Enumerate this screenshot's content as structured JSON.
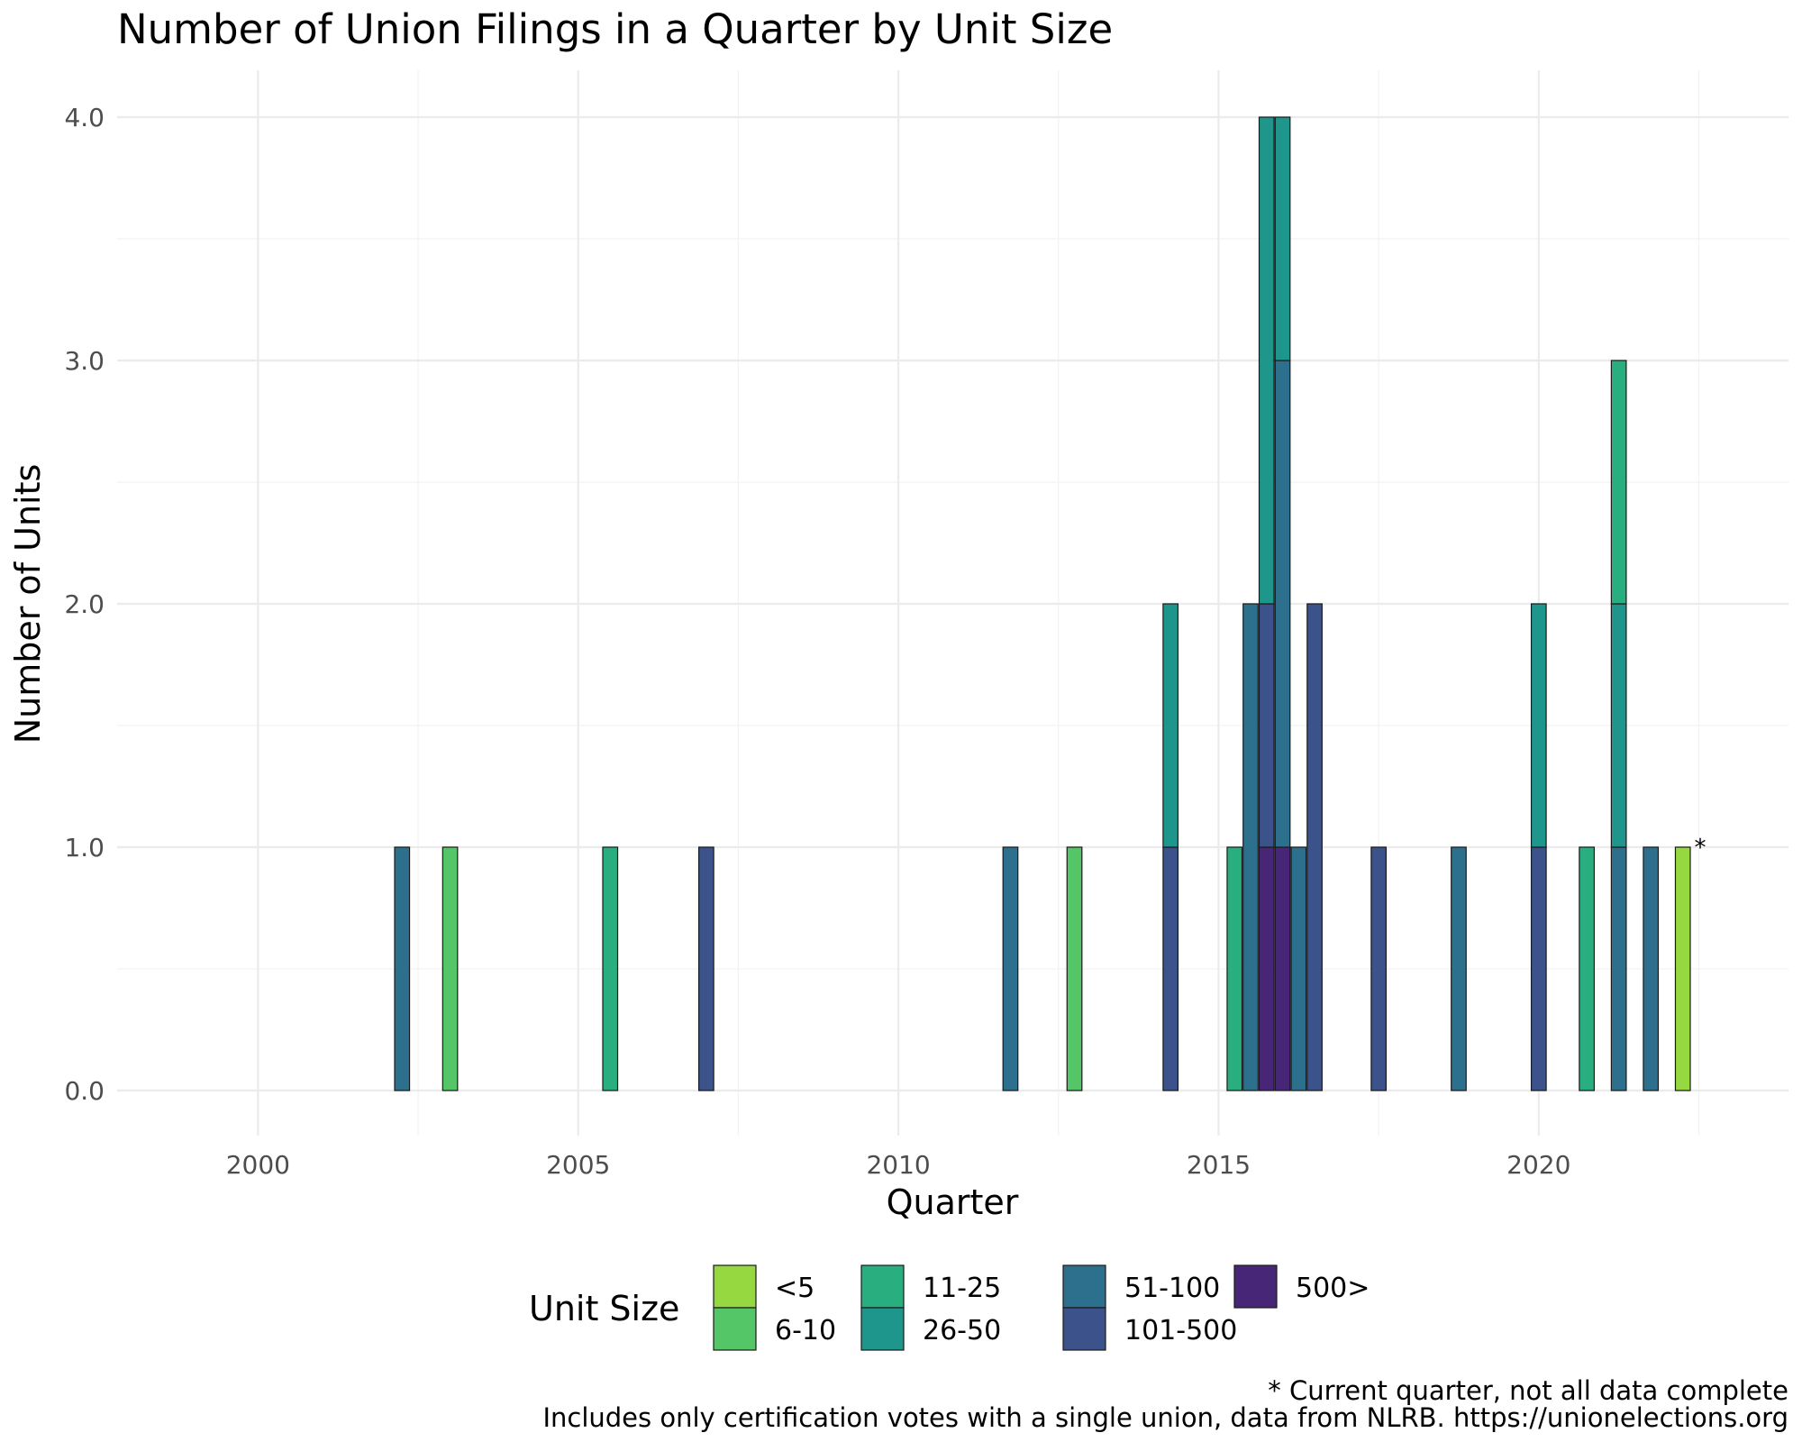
{
  "chart_data": {
    "type": "bar",
    "stacked": true,
    "title": "Number of Union Filings in a Quarter by Unit Size",
    "xlabel": "Quarter",
    "ylabel": "Number of Units",
    "xlim": [
      1997.8,
      2023.9
    ],
    "ylim": [
      0,
      4
    ],
    "x_ticks": [
      2000,
      2005,
      2010,
      2015,
      2020
    ],
    "x_tick_labels": [
      "2000",
      "2005",
      "2010",
      "2015",
      "2020"
    ],
    "y_ticks": [
      0,
      1,
      2,
      3,
      4
    ],
    "y_tick_labels": [
      "0.0",
      "1.0",
      "2.0",
      "3.0",
      "4.0"
    ],
    "grid": true,
    "legend": {
      "title": "Unit Size",
      "position": "bottom",
      "entries": [
        {
          "name": "<5",
          "color": "#95d840"
        },
        {
          "name": "6-10",
          "color": "#55c667"
        },
        {
          "name": "11-25",
          "color": "#29af7f"
        },
        {
          "name": "26-50",
          "color": "#1f968b"
        },
        {
          "name": "51-100",
          "color": "#2d708e"
        },
        {
          "name": "101-500",
          "color": "#3b528b"
        },
        {
          "name": "500>",
          "color": "#482677"
        }
      ]
    },
    "bars": [
      {
        "x": 2002.25,
        "segments": [
          {
            "series": "51-100",
            "value": 1
          }
        ]
      },
      {
        "x": 2003.0,
        "segments": [
          {
            "series": "6-10",
            "value": 1
          }
        ]
      },
      {
        "x": 2005.5,
        "segments": [
          {
            "series": "11-25",
            "value": 1
          }
        ]
      },
      {
        "x": 2007.0,
        "segments": [
          {
            "series": "101-500",
            "value": 1
          }
        ]
      },
      {
        "x": 2011.75,
        "segments": [
          {
            "series": "51-100",
            "value": 1
          }
        ]
      },
      {
        "x": 2012.75,
        "segments": [
          {
            "series": "6-10",
            "value": 1
          }
        ]
      },
      {
        "x": 2014.25,
        "segments": [
          {
            "series": "26-50",
            "value": 1
          },
          {
            "series": "101-500",
            "value": 1
          }
        ]
      },
      {
        "x": 2015.25,
        "segments": [
          {
            "series": "11-25",
            "value": 1
          }
        ]
      },
      {
        "x": 2015.5,
        "segments": [
          {
            "series": "51-100",
            "value": 2
          }
        ]
      },
      {
        "x": 2015.75,
        "segments": [
          {
            "series": "26-50",
            "value": 2
          },
          {
            "series": "101-500",
            "value": 1
          },
          {
            "series": "500>",
            "value": 1
          }
        ]
      },
      {
        "x": 2016.0,
        "segments": [
          {
            "series": "26-50",
            "value": 1
          },
          {
            "series": "51-100",
            "value": 2
          },
          {
            "series": "500>",
            "value": 1
          }
        ]
      },
      {
        "x": 2016.25,
        "segments": [
          {
            "series": "51-100",
            "value": 1
          }
        ]
      },
      {
        "x": 2016.5,
        "segments": [
          {
            "series": "101-500",
            "value": 2
          }
        ]
      },
      {
        "x": 2017.5,
        "segments": [
          {
            "series": "101-500",
            "value": 1
          }
        ]
      },
      {
        "x": 2018.75,
        "segments": [
          {
            "series": "51-100",
            "value": 1
          }
        ]
      },
      {
        "x": 2020.0,
        "segments": [
          {
            "series": "26-50",
            "value": 1
          },
          {
            "series": "101-500",
            "value": 1
          }
        ]
      },
      {
        "x": 2020.75,
        "segments": [
          {
            "series": "11-25",
            "value": 1
          }
        ]
      },
      {
        "x": 2021.25,
        "segments": [
          {
            "series": "11-25",
            "value": 1
          },
          {
            "series": "26-50",
            "value": 1
          },
          {
            "series": "51-100",
            "value": 1
          }
        ]
      },
      {
        "x": 2021.75,
        "segments": [
          {
            "series": "51-100",
            "value": 1
          }
        ]
      },
      {
        "x": 2022.25,
        "segments": [
          {
            "series": "<5",
            "value": 1
          }
        ]
      }
    ],
    "annotations": [
      {
        "text": "*",
        "x": 2022.5,
        "y": 1
      }
    ],
    "caption_lines": [
      "* Current quarter, not all data complete",
      "Includes only certification votes with a single union, data from NLRB. https://unionelections.org"
    ]
  }
}
